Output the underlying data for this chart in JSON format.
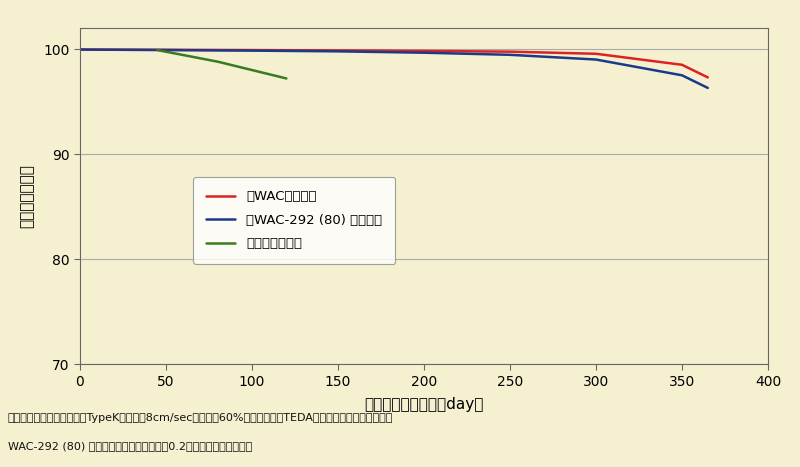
{
  "title": "",
  "xlabel": "ウェザリング日数（day）",
  "ylabel": "捕集効率（％）",
  "xlim": [
    0,
    400
  ],
  "ylim": [
    70,
    102
  ],
  "yticks": [
    70,
    80,
    90,
    100
  ],
  "xticks": [
    0,
    50,
    100,
    150,
    200,
    250,
    300,
    350,
    400
  ],
  "background_color": "#f5f0d0",
  "plot_bg_color": "#f5f0d0",
  "grid_color": "#aaaaaa",
  "red_line": {
    "x": [
      0,
      50,
      100,
      150,
      200,
      250,
      300,
      350,
      365
    ],
    "y": [
      99.95,
      99.93,
      99.9,
      99.87,
      99.82,
      99.75,
      99.55,
      98.5,
      97.3
    ],
    "color": "#dd2222",
    "label": "新WACフィルタ",
    "linewidth": 1.8
  },
  "blue_line": {
    "x": [
      0,
      50,
      100,
      150,
      200,
      250,
      300,
      350,
      365
    ],
    "y": [
      99.95,
      99.9,
      99.85,
      99.78,
      99.65,
      99.45,
      99.0,
      97.5,
      96.3
    ],
    "color": "#1a3a8a",
    "label": "新WAC-292 (80) フィルタ",
    "linewidth": 1.8
  },
  "green_line": {
    "x": [
      45,
      80,
      120
    ],
    "y": [
      99.9,
      98.8,
      97.2
    ],
    "color": "#3a7a22",
    "label": "従来のフィルタ",
    "linewidth": 1.8
  },
  "caption_line1": "活性炭素繊維：フェルト型TypeK　面速：8cm/sec　湿度：60%　添着物質：TEDA（トリエチレンジアミン）",
  "caption_line2": "WAC-292 (80) フィルタは、申請上透過率0.2でご使用になれます。"
}
